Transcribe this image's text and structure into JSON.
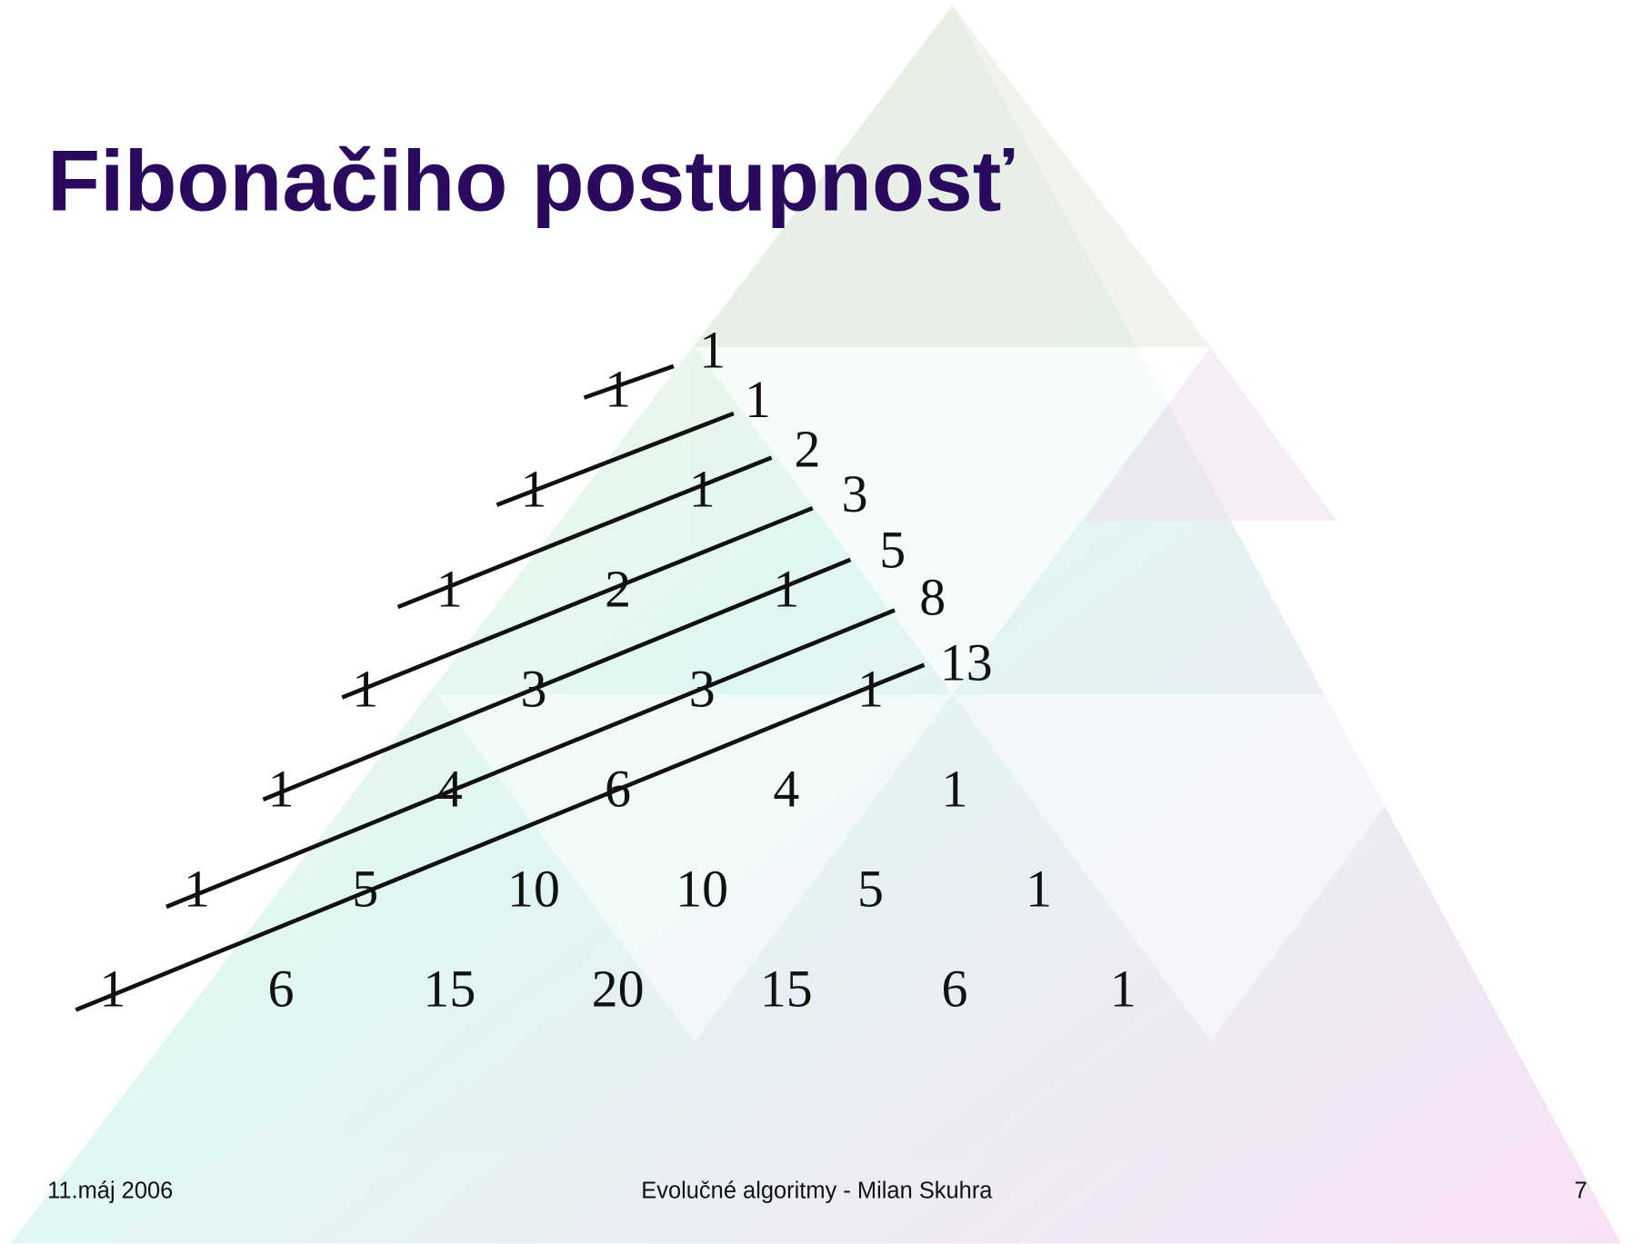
{
  "title": "Fibonačiho postupnosť",
  "triangle_rows": [
    [
      1
    ],
    [
      1,
      1
    ],
    [
      1,
      2,
      1
    ],
    [
      1,
      3,
      3,
      1
    ],
    [
      1,
      4,
      6,
      4,
      1
    ],
    [
      1,
      5,
      10,
      10,
      5,
      1
    ],
    [
      1,
      6,
      15,
      20,
      15,
      6,
      1
    ]
  ],
  "fibonacci": [
    1,
    1,
    2,
    3,
    5,
    8,
    13
  ],
  "footer": {
    "date": "11.máj 2006",
    "center": "Evolučné algoritmy - Milan Skuhra",
    "page": "7"
  }
}
